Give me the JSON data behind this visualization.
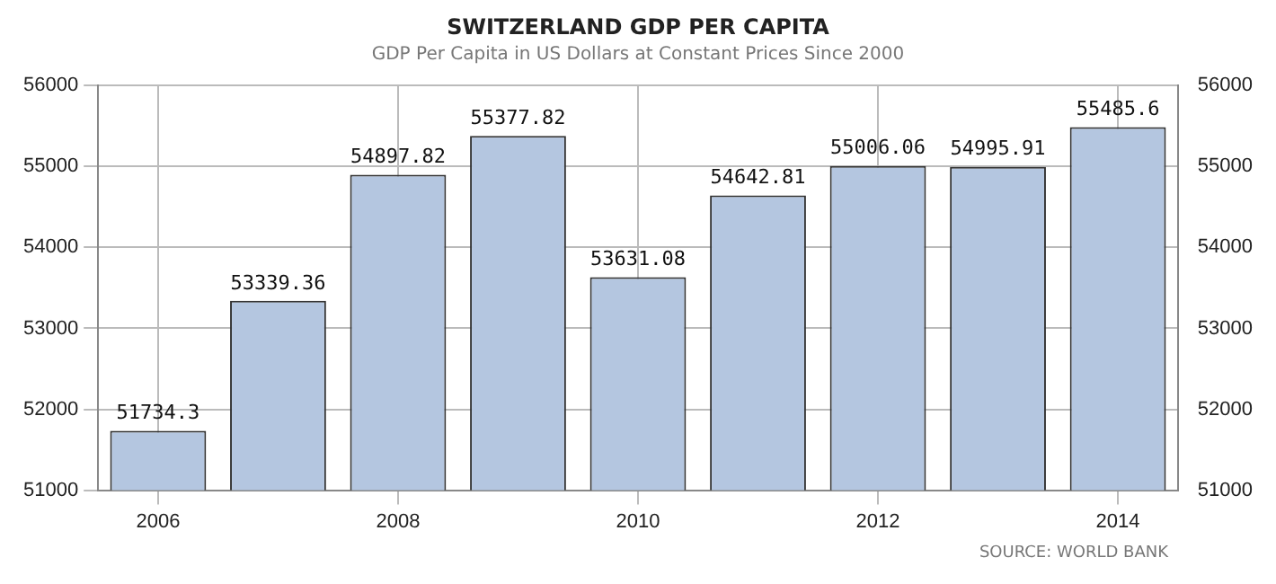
{
  "chart_data": {
    "type": "bar",
    "title": "SWITZERLAND GDP PER CAPITA",
    "subtitle": "GDP Per Capita in US Dollars at Constant Prices Since 2000",
    "categories": [
      "2006",
      null,
      "2008",
      null,
      "2010",
      null,
      "2012",
      null,
      "2014"
    ],
    "values": [
      51734.3,
      53339.36,
      54897.82,
      55377.82,
      53631.08,
      54642.81,
      55006.06,
      54995.91,
      55485.6
    ],
    "color": "#b4c6e0",
    "ylim": [
      51000,
      56000
    ],
    "yticks": [
      51000,
      52000,
      53000,
      54000,
      55000,
      56000
    ],
    "y2lim": [
      51000,
      56000
    ],
    "y2ticks": [
      51000,
      52000,
      53000,
      54000,
      55000,
      56000
    ],
    "grid": true,
    "data_labels": true,
    "annotations": [
      "SOURCE: WORLD BANK"
    ]
  }
}
